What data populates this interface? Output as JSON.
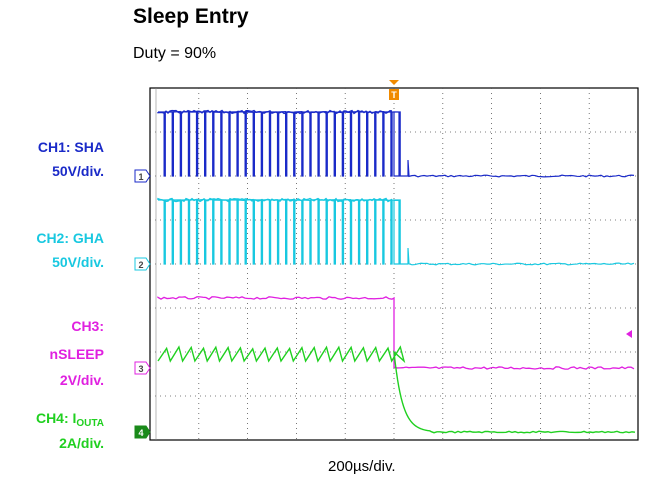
{
  "title": "Sleep Entry",
  "subtitle": "Duty = 90%",
  "timebase": "200µs/div.",
  "channels": [
    {
      "name": "CH1: SHA",
      "scale": "50V/div.",
      "color": "#1a2ac8",
      "marker": "1"
    },
    {
      "name": "CH2: GHA",
      "scale": "50V/div.",
      "color": "#18c8e0",
      "marker": "2"
    },
    {
      "name": "CH3:",
      "name2": "nSLEEP",
      "scale": "2V/div.",
      "color": "#e020e0",
      "marker": "3"
    },
    {
      "name": "CH4: I",
      "name_sub": "OUTA",
      "scale": "2A/div.",
      "color": "#20d020",
      "marker": "4"
    }
  ],
  "trigger_label": "T",
  "chart_data": {
    "type": "line",
    "title": "Sleep Entry",
    "subtitle": "Duty = 90%",
    "xlabel": "200µs/div.",
    "x_divisions": 10,
    "y_divisions": 8,
    "grid": true,
    "trigger_x_div": 5.0,
    "series": [
      {
        "name": "CH1: SHA",
        "scale": "50V/div.",
        "color": "#1a2ac8",
        "high_div": 1.5,
        "low_div": 0.0,
        "behavior": "switching then low",
        "switch_end_div": 5.0
      },
      {
        "name": "CH2: GHA",
        "scale": "50V/div.",
        "color": "#18c8e0",
        "high_div": 1.5,
        "low_div": 0.0,
        "behavior": "switching then low",
        "switch_end_div": 5.0
      },
      {
        "name": "CH3: nSLEEP",
        "scale": "2V/div.",
        "color": "#e020e0",
        "high_div": 2.0,
        "low_div": 0.0,
        "behavior": "high then low",
        "switch_end_div": 5.0
      },
      {
        "name": "CH4: IOUTA",
        "scale": "2A/div.",
        "color": "#20d020",
        "high_div": 2.2,
        "low_div": 0.0,
        "behavior": "sawtooth then decay",
        "switch_end_div": 5.0
      }
    ]
  }
}
